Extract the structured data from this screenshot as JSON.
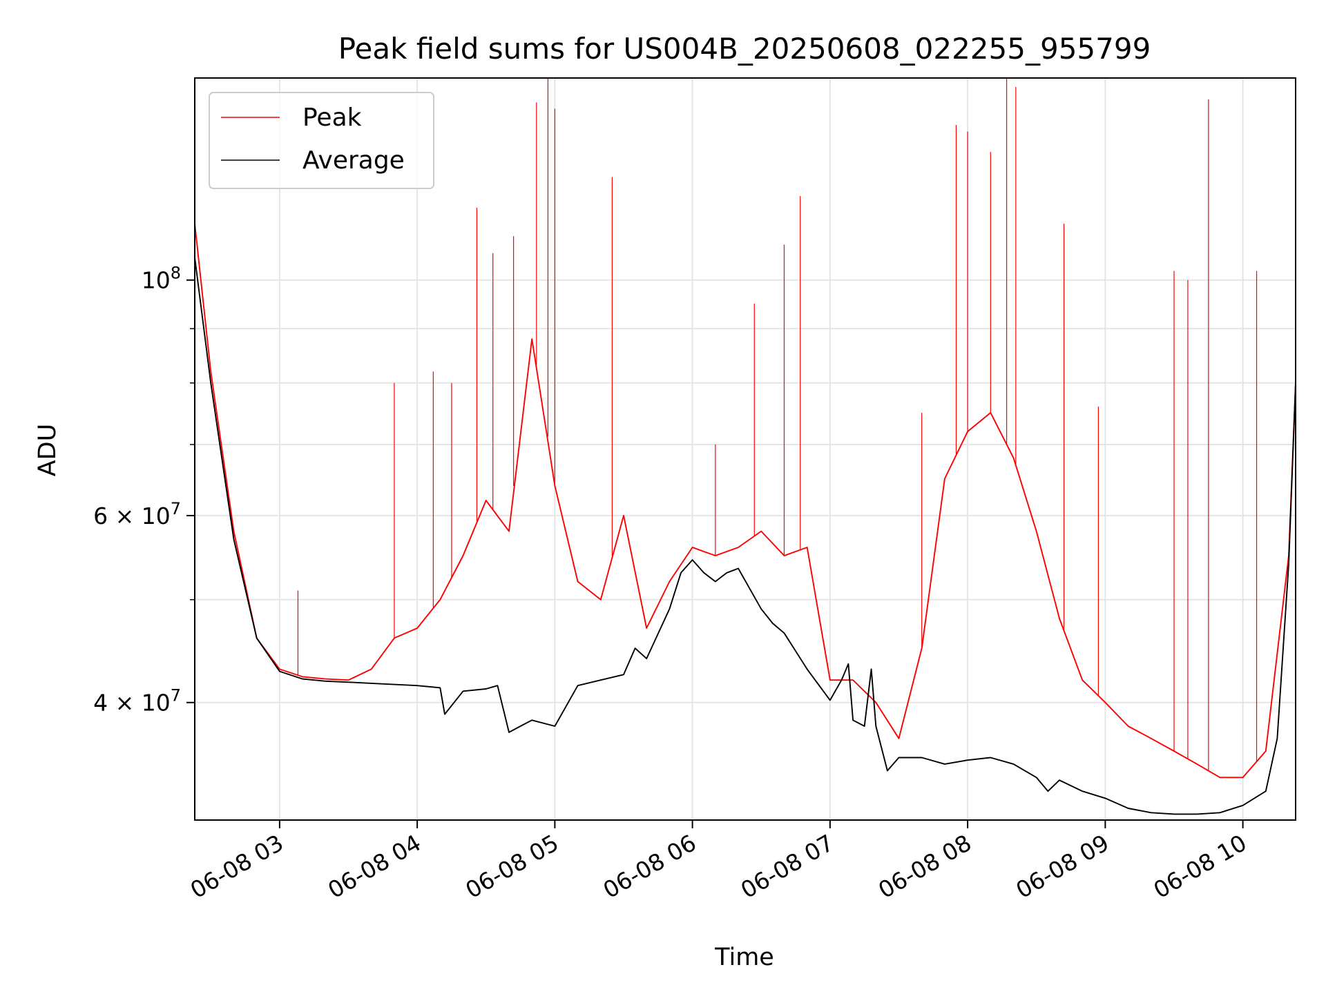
{
  "chart_data": {
    "type": "line",
    "title": "Peak field sums for US004B_20250608_022255_955799",
    "xlabel": "Time",
    "ylabel": "ADU",
    "y_scale": "log",
    "ylim": [
      31000000,
      155000000
    ],
    "xlim": [
      "06-08 02:23",
      "06-08 10:23"
    ],
    "grid": true,
    "legend_placement": "top-left",
    "x_ticks": [
      {
        "label": "06-08 03",
        "value": "06-08 03:00"
      },
      {
        "label": "06-08 04",
        "value": "06-08 04:00"
      },
      {
        "label": "06-08 05",
        "value": "06-08 05:00"
      },
      {
        "label": "06-08 06",
        "value": "06-08 06:00"
      },
      {
        "label": "06-08 07",
        "value": "06-08 07:00"
      },
      {
        "label": "06-08 08",
        "value": "06-08 08:00"
      },
      {
        "label": "06-08 09",
        "value": "06-08 09:00"
      },
      {
        "label": "06-08 10",
        "value": "06-08 10:00"
      }
    ],
    "y_ticks": [
      {
        "label_base": "4 × 10",
        "label_exp": "7",
        "value": 40000000
      },
      {
        "label_base": "6 × 10",
        "label_exp": "7",
        "value": 60000000
      },
      {
        "label_base": "10",
        "label_exp": "8",
        "value": 100000000
      }
    ],
    "y_minor_ticks": [
      50000000,
      70000000,
      80000000,
      90000000
    ],
    "series": [
      {
        "name": "Peak",
        "color": "#ff0000",
        "line_width": 1.2,
        "x": [
          "06-08 02:23",
          "06-08 02:30",
          "06-08 02:40",
          "06-08 02:50",
          "06-08 03:00",
          "06-08 03:10",
          "06-08 03:20",
          "06-08 03:30",
          "06-08 03:40",
          "06-08 03:50",
          "06-08 04:00",
          "06-08 04:10",
          "06-08 04:20",
          "06-08 04:30",
          "06-08 04:40",
          "06-08 04:50",
          "06-08 05:00",
          "06-08 05:10",
          "06-08 05:20",
          "06-08 05:30",
          "06-08 05:40",
          "06-08 05:50",
          "06-08 06:00",
          "06-08 06:10",
          "06-08 06:20",
          "06-08 06:30",
          "06-08 06:40",
          "06-08 06:50",
          "06-08 07:00",
          "06-08 07:10",
          "06-08 07:20",
          "06-08 07:30",
          "06-08 07:40",
          "06-08 07:50",
          "06-08 08:00",
          "06-08 08:10",
          "06-08 08:20",
          "06-08 08:30",
          "06-08 08:40",
          "06-08 08:50",
          "06-08 09:00",
          "06-08 09:10",
          "06-08 09:20",
          "06-08 09:30",
          "06-08 09:40",
          "06-08 09:50",
          "06-08 10:00",
          "06-08 10:10",
          "06-08 10:20",
          "06-08 10:23"
        ],
        "y": [
          113000000,
          82000000,
          58000000,
          46000000,
          43000000,
          42300000,
          42100000,
          42000000,
          43000000,
          46000000,
          47000000,
          50000000,
          55000000,
          62000000,
          58000000,
          88000000,
          64000000,
          52000000,
          50000000,
          60000000,
          47000000,
          52000000,
          56000000,
          55000000,
          56000000,
          58000000,
          55000000,
          56000000,
          42000000,
          42000000,
          40000000,
          37000000,
          45000000,
          65000000,
          72000000,
          75000000,
          68000000,
          58000000,
          48000000,
          42000000,
          40000000,
          38000000,
          37000000,
          36000000,
          35000000,
          34000000,
          34000000,
          36000000,
          55000000,
          80000000
        ],
        "spikes": [
          {
            "x": "06-08 03:08",
            "y": 51000000
          },
          {
            "x": "06-08 03:50",
            "y": 80000000
          },
          {
            "x": "06-08 04:07",
            "y": 82000000
          },
          {
            "x": "06-08 04:15",
            "y": 80000000
          },
          {
            "x": "06-08 04:26",
            "y": 117000000
          },
          {
            "x": "06-08 04:33",
            "y": 106000000
          },
          {
            "x": "06-08 04:42",
            "y": 110000000
          },
          {
            "x": "06-08 04:52",
            "y": 147000000
          },
          {
            "x": "06-08 04:57",
            "y": 155000000
          },
          {
            "x": "06-08 05:00",
            "y": 145000000
          },
          {
            "x": "06-08 05:25",
            "y": 125000000
          },
          {
            "x": "06-08 06:10",
            "y": 70000000
          },
          {
            "x": "06-08 06:27",
            "y": 95000000
          },
          {
            "x": "06-08 06:40",
            "y": 108000000
          },
          {
            "x": "06-08 06:47",
            "y": 120000000
          },
          {
            "x": "06-08 07:40",
            "y": 75000000
          },
          {
            "x": "06-08 07:55",
            "y": 140000000
          },
          {
            "x": "06-08 08:00",
            "y": 138000000
          },
          {
            "x": "06-08 08:10",
            "y": 132000000
          },
          {
            "x": "06-08 08:17",
            "y": 155000000
          },
          {
            "x": "06-08 08:21",
            "y": 152000000
          },
          {
            "x": "06-08 08:42",
            "y": 113000000
          },
          {
            "x": "06-08 08:57",
            "y": 76000000
          },
          {
            "x": "06-08 09:30",
            "y": 102000000
          },
          {
            "x": "06-08 09:36",
            "y": 100000000
          },
          {
            "x": "06-08 09:45",
            "y": 148000000
          },
          {
            "x": "06-08 10:06",
            "y": 102000000
          }
        ]
      },
      {
        "name": "Average",
        "color": "#000000",
        "line_width": 1.2,
        "x": [
          "06-08 02:23",
          "06-08 02:30",
          "06-08 02:40",
          "06-08 02:50",
          "06-08 03:00",
          "06-08 03:10",
          "06-08 03:20",
          "06-08 03:30",
          "06-08 03:40",
          "06-08 03:50",
          "06-08 04:00",
          "06-08 04:10",
          "06-08 04:12",
          "06-08 04:20",
          "06-08 04:30",
          "06-08 04:35",
          "06-08 04:40",
          "06-08 04:45",
          "06-08 04:50",
          "06-08 05:00",
          "06-08 05:10",
          "06-08 05:20",
          "06-08 05:30",
          "06-08 05:35",
          "06-08 05:40",
          "06-08 05:50",
          "06-08 05:55",
          "06-08 06:00",
          "06-08 06:05",
          "06-08 06:10",
          "06-08 06:15",
          "06-08 06:20",
          "06-08 06:30",
          "06-08 06:35",
          "06-08 06:40",
          "06-08 06:50",
          "06-08 07:00",
          "06-08 07:05",
          "06-08 07:08",
          "06-08 07:10",
          "06-08 07:15",
          "06-08 07:18",
          "06-08 07:20",
          "06-08 07:25",
          "06-08 07:30",
          "06-08 07:40",
          "06-08 07:50",
          "06-08 08:00",
          "06-08 08:10",
          "06-08 08:20",
          "06-08 08:30",
          "06-08 08:35",
          "06-08 08:40",
          "06-08 08:50",
          "06-08 09:00",
          "06-08 09:10",
          "06-08 09:20",
          "06-08 09:30",
          "06-08 09:40",
          "06-08 09:50",
          "06-08 10:00",
          "06-08 10:10",
          "06-08 10:15",
          "06-08 10:20",
          "06-08 10:23"
        ],
        "y": [
          105000000,
          80000000,
          57000000,
          46000000,
          42800000,
          42100000,
          41900000,
          41800000,
          41700000,
          41600000,
          41500000,
          41300000,
          39000000,
          41000000,
          41200000,
          41500000,
          37500000,
          38000000,
          38500000,
          38000000,
          41500000,
          42000000,
          42500000,
          45000000,
          44000000,
          49000000,
          53000000,
          54500000,
          53000000,
          52000000,
          53000000,
          53500000,
          49000000,
          47500000,
          46500000,
          43000000,
          40200000,
          42000000,
          43500000,
          38500000,
          38000000,
          43000000,
          38000000,
          34500000,
          35500000,
          35500000,
          35000000,
          35300000,
          35500000,
          35000000,
          34000000,
          33000000,
          33800000,
          33000000,
          32500000,
          31800000,
          31500000,
          31400000,
          31400000,
          31500000,
          32000000,
          33000000,
          37000000,
          54000000,
          80000000
        ]
      }
    ]
  }
}
